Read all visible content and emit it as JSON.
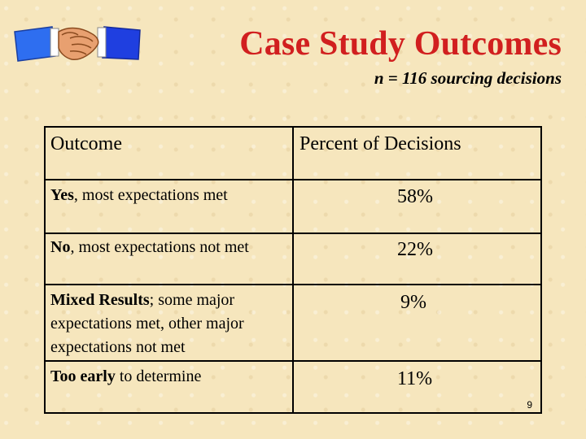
{
  "title": "Case Study Outcomes",
  "subtitle": "n = 116 sourcing decisions",
  "logo": {
    "icon": "handshake-icon"
  },
  "table": {
    "headers": [
      "Outcome",
      "Percent of Decisions"
    ],
    "rows": [
      {
        "label_bold": "Yes",
        "label_rest": ", most expectations met",
        "percent": "58%"
      },
      {
        "label_bold": "No",
        "label_rest": ", most expectations not met",
        "percent": "22%"
      },
      {
        "label_bold": "Mixed Results",
        "label_rest": "; some major expectations met, other major expectations not met",
        "percent": "9%"
      },
      {
        "label_bold": "Too early",
        "label_rest": " to determine",
        "percent": "11%"
      }
    ]
  },
  "page_number": "9",
  "colors": {
    "title": "#d11f1f",
    "background": "#f6e6bd",
    "sleeve": "#1f5ee8"
  }
}
